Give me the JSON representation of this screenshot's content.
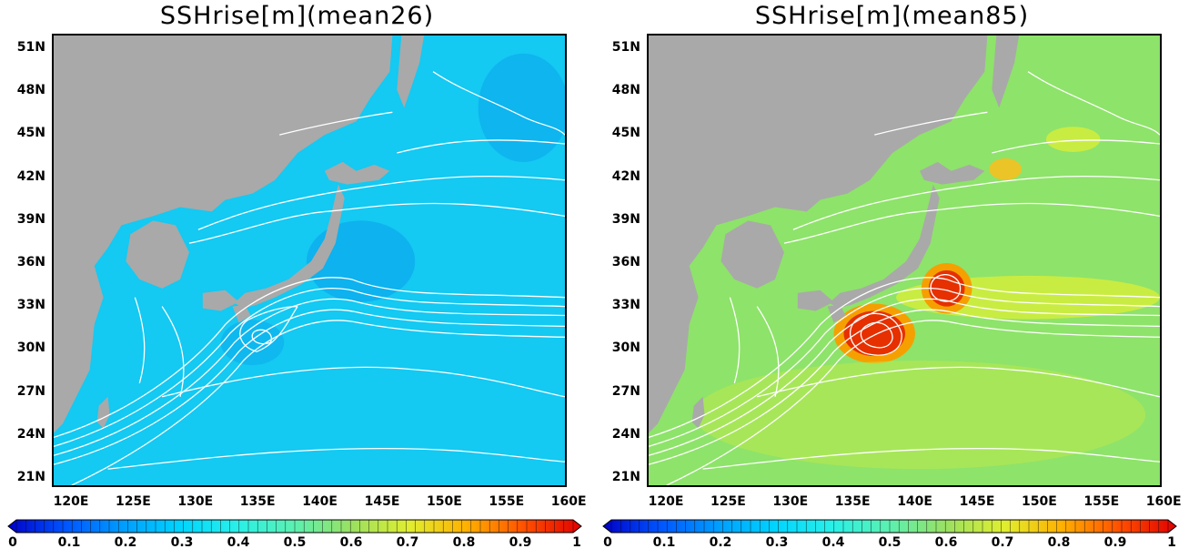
{
  "panels": [
    {
      "title": "SSHrise[m](mean26)",
      "ocean_color": "#14c9f2",
      "accent_color": "#0aa8ec"
    },
    {
      "title": "SSHrise[m](mean85)",
      "ocean_color": "#8ee36a",
      "accent_color": "#d8ee38"
    }
  ],
  "land_color": "#a9a9a9",
  "contour_color": "#ffffff",
  "axes": {
    "x_ticks": [
      "120E",
      "125E",
      "130E",
      "135E",
      "140E",
      "145E",
      "150E",
      "155E",
      "160E"
    ],
    "y_ticks": [
      "51N",
      "48N",
      "45N",
      "42N",
      "39N",
      "36N",
      "33N",
      "30N",
      "27N",
      "24N",
      "21N"
    ]
  },
  "colorbar": {
    "labels": [
      "0",
      "0.1",
      "0.2",
      "0.3",
      "0.4",
      "0.5",
      "0.6",
      "0.7",
      "0.8",
      "0.9",
      "1"
    ],
    "colors": [
      "#0000c8",
      "#0055ff",
      "#009dff",
      "#00d4ff",
      "#29f0e8",
      "#5cf0b0",
      "#9be060",
      "#e0ee30",
      "#ffb000",
      "#ff5000",
      "#e00000"
    ]
  }
}
